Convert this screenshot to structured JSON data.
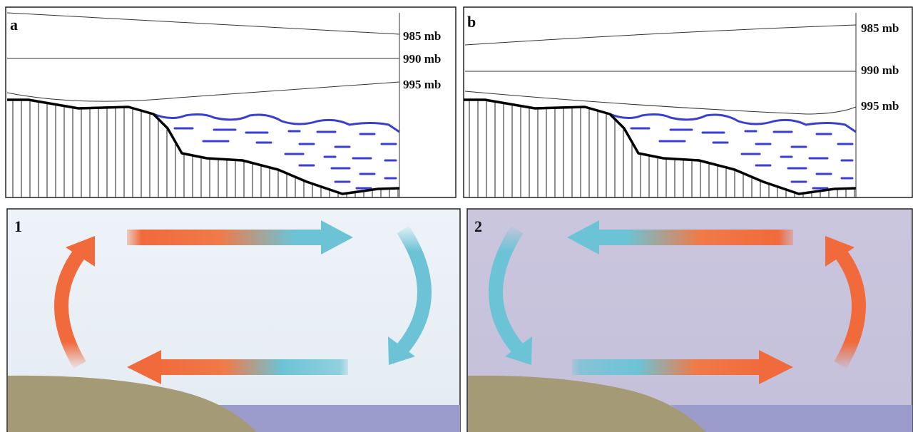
{
  "panels": [
    {
      "label": "a",
      "isobars": [
        "985 mb",
        "990 mb",
        "995 mb"
      ]
    },
    {
      "label": "b",
      "isobars": [
        "985 mb",
        "990 mb",
        "995 mb"
      ]
    },
    {
      "label": "1"
    },
    {
      "label": "2"
    }
  ]
}
